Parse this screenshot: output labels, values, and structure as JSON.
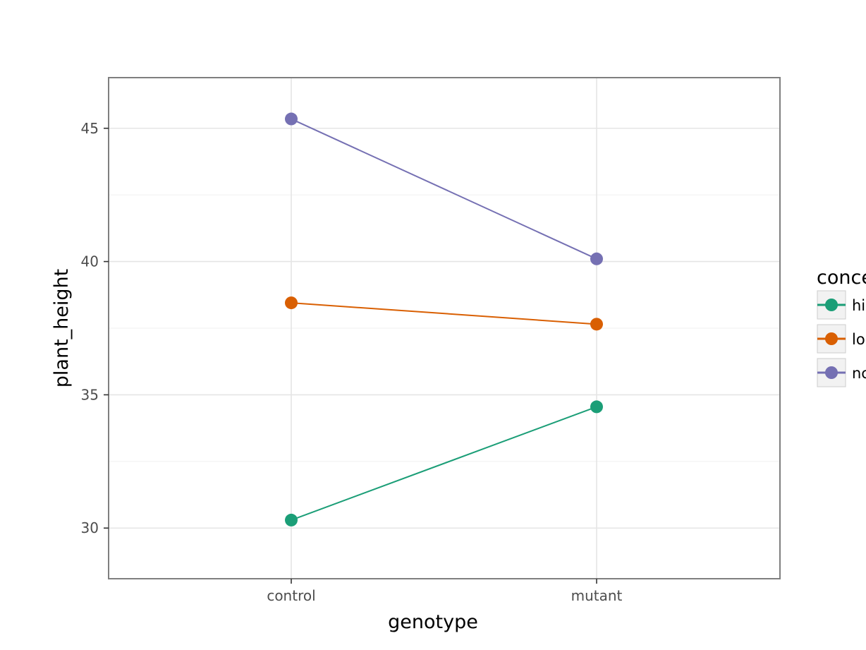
{
  "chart_data": {
    "type": "line",
    "title": "",
    "xlabel": "genotype",
    "ylabel": "plant_height",
    "categories": [
      "control",
      "mutant"
    ],
    "ylim": [
      28.1,
      46.9
    ],
    "yticks": [
      30,
      35,
      40,
      45
    ],
    "ytick_labels": [
      "30",
      "35",
      "40",
      "45"
    ],
    "grid": true,
    "legend": {
      "title": "conce",
      "position": "right",
      "labels": [
        "hi",
        "lo",
        "nc"
      ]
    },
    "series": [
      {
        "key": "high",
        "color": "#1b9e77",
        "values": [
          30.3,
          34.55
        ]
      },
      {
        "key": "low",
        "color": "#d95f02",
        "values": [
          38.45,
          37.65
        ]
      },
      {
        "key": "none",
        "color": "#7570b3",
        "values": [
          45.35,
          40.1
        ]
      }
    ]
  }
}
